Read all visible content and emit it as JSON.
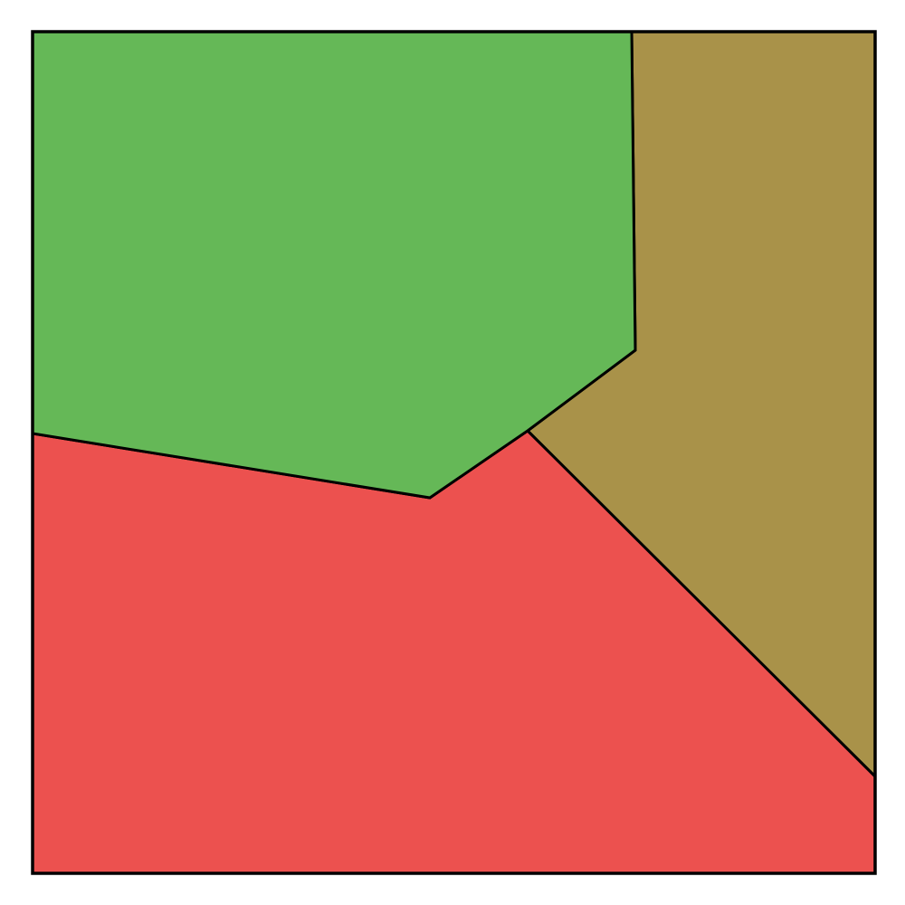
{
  "regions": [
    {
      "id": "green-region",
      "color": "#65b857"
    },
    {
      "id": "olive-region",
      "color": "#a99249"
    },
    {
      "id": "red-region",
      "color": "#ec514f"
    }
  ],
  "colors": {
    "border": "#000000",
    "background": "#ffffff"
  }
}
